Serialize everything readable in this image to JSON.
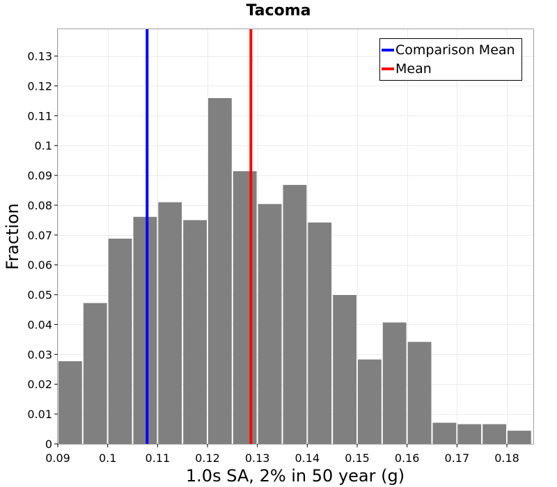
{
  "chart_data": {
    "type": "bar",
    "title": "Tacoma",
    "xlabel": "1.0s SA, 2% in 50 year (g)",
    "ylabel": "Fraction",
    "xlim": [
      0.09,
      0.1853
    ],
    "ylim": [
      0,
      0.139
    ],
    "bin_width": 0.005,
    "bins": [
      {
        "x": 0.0925,
        "y": 0.0277
      },
      {
        "x": 0.0975,
        "y": 0.0472
      },
      {
        "x": 0.1025,
        "y": 0.0688
      },
      {
        "x": 0.1075,
        "y": 0.0761
      },
      {
        "x": 0.1125,
        "y": 0.081
      },
      {
        "x": 0.1175,
        "y": 0.075
      },
      {
        "x": 0.1225,
        "y": 0.1159
      },
      {
        "x": 0.1275,
        "y": 0.0914
      },
      {
        "x": 0.1325,
        "y": 0.0804
      },
      {
        "x": 0.1375,
        "y": 0.0868
      },
      {
        "x": 0.1425,
        "y": 0.0742
      },
      {
        "x": 0.1475,
        "y": 0.0499
      },
      {
        "x": 0.1525,
        "y": 0.0283
      },
      {
        "x": 0.1575,
        "y": 0.0407
      },
      {
        "x": 0.1625,
        "y": 0.0342
      },
      {
        "x": 0.1675,
        "y": 0.0071
      },
      {
        "x": 0.1725,
        "y": 0.0066
      },
      {
        "x": 0.1775,
        "y": 0.0066
      },
      {
        "x": 0.1825,
        "y": 0.0044
      }
    ],
    "bar_color": "#808080",
    "vlines": [
      {
        "name": "Comparison Mean",
        "x": 0.1079,
        "color": "#0000ff"
      },
      {
        "name": "Mean",
        "x": 0.1287,
        "color": "#ff0000"
      }
    ],
    "x_ticks": [
      {
        "value": 0.09,
        "label": "0.09"
      },
      {
        "value": 0.1,
        "label": "0.1"
      },
      {
        "value": 0.11,
        "label": "0.11"
      },
      {
        "value": 0.12,
        "label": "0.12"
      },
      {
        "value": 0.13,
        "label": "0.13"
      },
      {
        "value": 0.14,
        "label": "0.14"
      },
      {
        "value": 0.15,
        "label": "0.15"
      },
      {
        "value": 0.16,
        "label": "0.16"
      },
      {
        "value": 0.17,
        "label": "0.17"
      },
      {
        "value": 0.18,
        "label": "0.18"
      }
    ],
    "y_ticks": [
      {
        "value": 0,
        "label": "0"
      },
      {
        "value": 0.01,
        "label": "0.01"
      },
      {
        "value": 0.02,
        "label": "0.02"
      },
      {
        "value": 0.03,
        "label": "0.03"
      },
      {
        "value": 0.04,
        "label": "0.04"
      },
      {
        "value": 0.05,
        "label": "0.05"
      },
      {
        "value": 0.06,
        "label": "0.06"
      },
      {
        "value": 0.07,
        "label": "0.07"
      },
      {
        "value": 0.08,
        "label": "0.08"
      },
      {
        "value": 0.09,
        "label": "0.09"
      },
      {
        "value": 0.1,
        "label": "0.1"
      },
      {
        "value": 0.11,
        "label": "0.11"
      },
      {
        "value": 0.12,
        "label": "0.12"
      },
      {
        "value": 0.13,
        "label": "0.13"
      }
    ],
    "grid": true,
    "legend_position": "top-right"
  }
}
